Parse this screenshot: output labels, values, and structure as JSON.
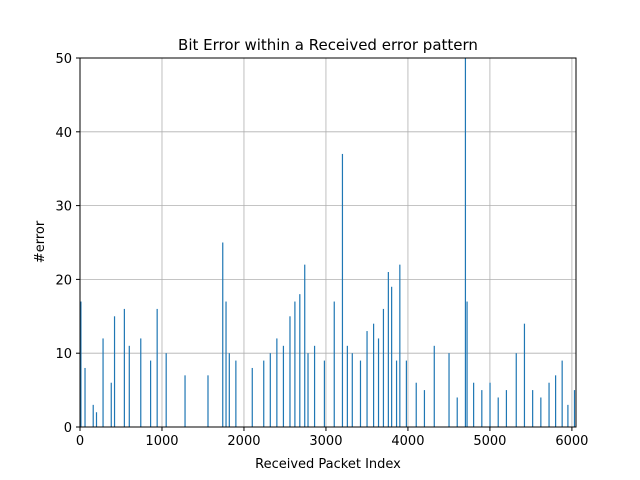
{
  "chart_data": {
    "type": "bar",
    "title": "Bit Error within a Received error pattern",
    "xlabel": "Received Packet Index",
    "ylabel": "#error",
    "xlim": [
      0,
      6050
    ],
    "ylim": [
      0,
      50
    ],
    "xticks": [
      0,
      1000,
      2000,
      3000,
      4000,
      5000,
      6000
    ],
    "yticks": [
      0,
      10,
      20,
      30,
      40,
      50
    ],
    "grid": true,
    "bar_color": "#1f77b4",
    "series": [
      {
        "x": [
          10,
          60,
          160,
          200,
          280,
          380,
          420,
          540,
          600,
          740,
          860,
          940,
          1050,
          1280,
          1560,
          1740,
          1780,
          1820,
          1900,
          2100,
          2240,
          2320,
          2400,
          2480,
          2560,
          2620,
          2680,
          2740,
          2780,
          2860,
          2980,
          3100,
          3200,
          3260,
          3320,
          3420,
          3500,
          3580,
          3640,
          3700,
          3760,
          3800,
          3860,
          3900,
          3980,
          4100,
          4200,
          4320,
          4500,
          4600,
          4700,
          4720,
          4800,
          4900,
          5000,
          5100,
          5200,
          5320,
          5420,
          5520,
          5620,
          5720,
          5800,
          5880,
          5950,
          6030
        ],
        "y": [
          17,
          8,
          3,
          2,
          12,
          6,
          15,
          16,
          11,
          12,
          9,
          16,
          10,
          7,
          7,
          25,
          17,
          10,
          9,
          8,
          9,
          10,
          12,
          11,
          15,
          17,
          18,
          22,
          10,
          11,
          9,
          17,
          37,
          11,
          10,
          9,
          13,
          14,
          12,
          16,
          21,
          19,
          9,
          22,
          9,
          6,
          5,
          11,
          10,
          4,
          50,
          17,
          6,
          5,
          6,
          4,
          5,
          10,
          14,
          5,
          4,
          6,
          7,
          9,
          3,
          5
        ]
      }
    ]
  }
}
